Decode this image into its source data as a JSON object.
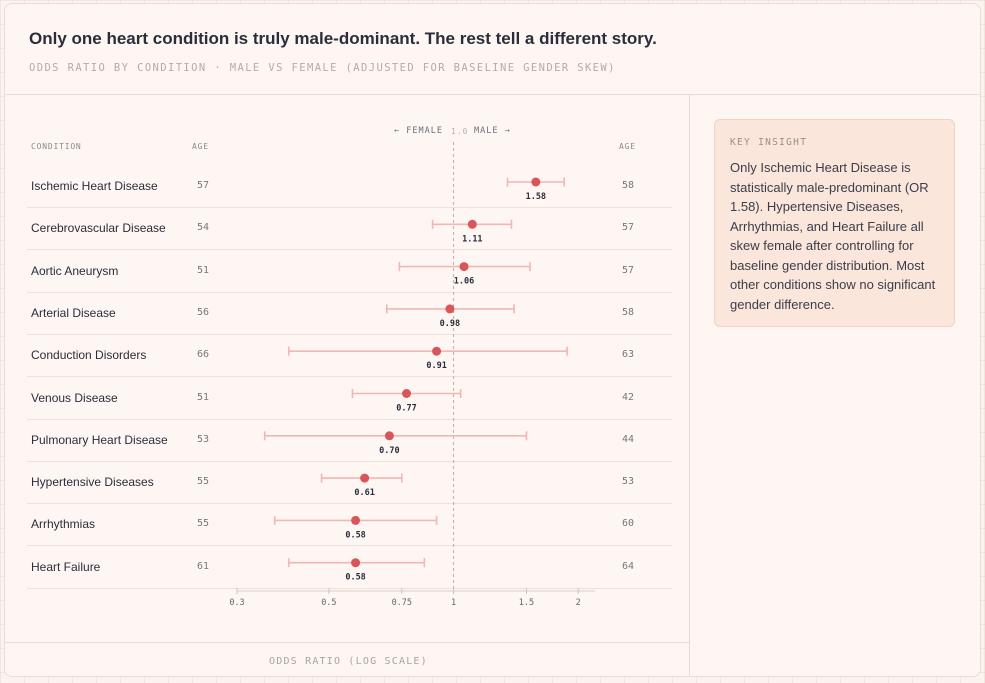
{
  "header": {
    "title": "Only one heart condition is truly male-dominant. The rest tell a different story.",
    "subtitle": "ODDS RATIO BY CONDITION · MALE VS FEMALE (ADJUSTED FOR BASELINE GENDER SKEW)"
  },
  "table": {
    "condition_header": "CONDITION",
    "age_left_header": "AGE",
    "age_right_header": "AGE",
    "female_label": "← FEMALE",
    "center_label": "1.0",
    "male_label": "MALE →"
  },
  "chart_data": {
    "type": "scatter",
    "x_scale": "log",
    "xlabel": "ODDS RATIO (LOG SCALE)",
    "xlim": [
      0.3,
      2.1
    ],
    "x_ticks": [
      0.3,
      0.5,
      0.75,
      1,
      1.5,
      2
    ],
    "x_tick_labels": [
      "0.3",
      "0.5",
      "0.75",
      "1",
      "1.5",
      "2"
    ],
    "reference_line": 1.0,
    "point_color": "#d9555a",
    "ci_color": "#f2b6b4",
    "rows": [
      {
        "condition": "Ischemic Heart Disease",
        "age_female": "57",
        "age_male": "58",
        "or": 1.58,
        "label": "1.58",
        "ci": [
          1.35,
          1.85
        ]
      },
      {
        "condition": "Cerebrovascular Disease",
        "age_female": "54",
        "age_male": "57",
        "or": 1.11,
        "label": "1.11",
        "ci": [
          0.89,
          1.38
        ]
      },
      {
        "condition": "Aortic Aneurysm",
        "age_female": "51",
        "age_male": "57",
        "or": 1.06,
        "label": "1.06",
        "ci": [
          0.74,
          1.53
        ]
      },
      {
        "condition": "Arterial Disease",
        "age_female": "56",
        "age_male": "58",
        "or": 0.98,
        "label": "0.98",
        "ci": [
          0.69,
          1.4
        ]
      },
      {
        "condition": "Conduction Disorders",
        "age_female": "66",
        "age_male": "63",
        "or": 0.91,
        "label": "0.91",
        "ci": [
          0.4,
          1.88
        ]
      },
      {
        "condition": "Venous Disease",
        "age_female": "51",
        "age_male": "42",
        "or": 0.77,
        "label": "0.77",
        "ci": [
          0.57,
          1.04
        ]
      },
      {
        "condition": "Pulmonary Heart Disease",
        "age_female": "53",
        "age_male": "44",
        "or": 0.7,
        "label": "0.70",
        "ci": [
          0.35,
          1.5
        ]
      },
      {
        "condition": "Hypertensive Diseases",
        "age_female": "55",
        "age_male": "53",
        "or": 0.61,
        "label": "0.61",
        "ci": [
          0.48,
          0.75
        ]
      },
      {
        "condition": "Arrhythmias",
        "age_female": "55",
        "age_male": "60",
        "or": 0.58,
        "label": "0.58",
        "ci": [
          0.37,
          0.91
        ]
      },
      {
        "condition": "Heart Failure",
        "age_female": "61",
        "age_male": "64",
        "or": 0.58,
        "label": "0.58",
        "ci": [
          0.4,
          0.85
        ]
      }
    ]
  },
  "insight": {
    "heading": "KEY INSIGHT",
    "body": "Only Ischemic Heart Disease is statistically male-predominant (OR 1.58). Hypertensive Diseases, Arrhythmias, and Heart Failure all skew female after controlling for baseline gender distribution. Most other conditions show no significant gender difference."
  }
}
